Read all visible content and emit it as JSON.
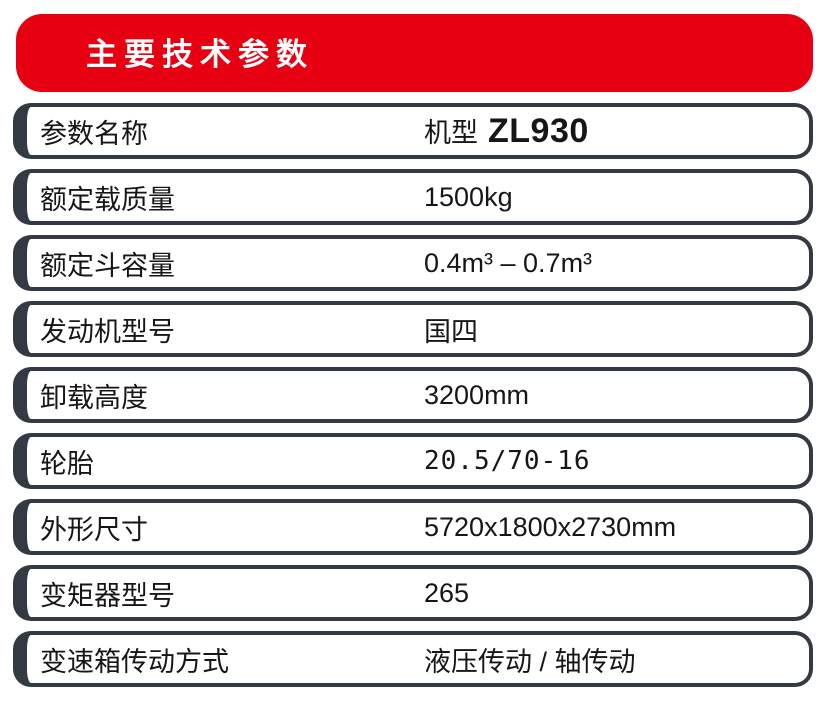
{
  "banner": {
    "title": "主要技术参数"
  },
  "colors": {
    "accent_red": "#e60012",
    "frame_dark": "#333a44"
  },
  "table": {
    "rows": [
      {
        "label": "参数名称",
        "value_prefix": "机型",
        "value": "ZL930",
        "emphasis": true
      },
      {
        "label": "额定载质量",
        "value": "1500kg"
      },
      {
        "label": "额定斗容量",
        "value": "0.4m³ – 0.7m³"
      },
      {
        "label": "发动机型号",
        "value": "国四"
      },
      {
        "label": "卸载高度",
        "value": "3200mm"
      },
      {
        "label": "轮胎",
        "value": "20.5/70-16",
        "mono": true
      },
      {
        "label": "外形尺寸",
        "value": "5720x1800x2730mm"
      },
      {
        "label": "变矩器型号",
        "value": "265"
      },
      {
        "label": "变速箱传动方式",
        "value": "液压传动 / 轴传动"
      }
    ]
  }
}
